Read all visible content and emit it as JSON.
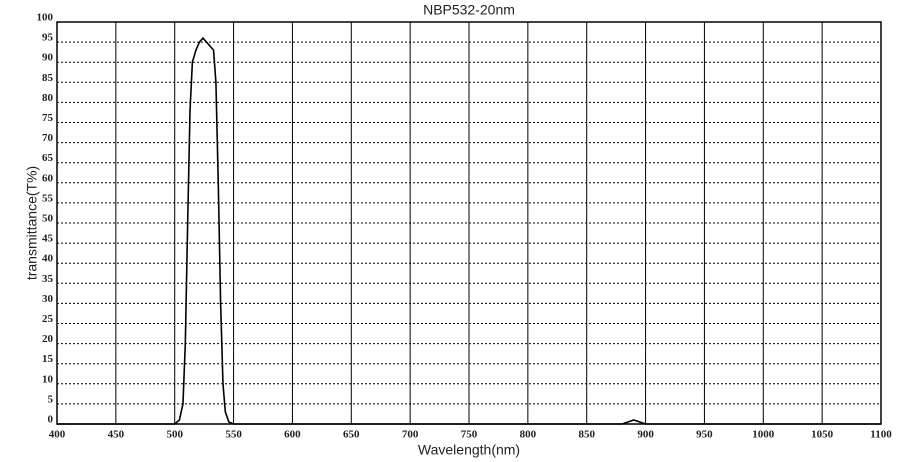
{
  "chart_data": {
    "type": "line",
    "title": "NBP532-20nm",
    "x_label": "Wavelength(nm)",
    "y_label": "transmittance(T%)",
    "series": [
      {
        "color": "#000000",
        "x": [
          400,
          500,
          504,
          507,
          509,
          511,
          513,
          515,
          518,
          521,
          524,
          527,
          530,
          533,
          535,
          537,
          539,
          541,
          543,
          546,
          550,
          600,
          700,
          880,
          890,
          900,
          1100
        ],
        "values": [
          0,
          0,
          1,
          5,
          20,
          50,
          78,
          90,
          93,
          95,
          96,
          95,
          94,
          93,
          85,
          60,
          30,
          10,
          3,
          0.5,
          0,
          0,
          0,
          0,
          1,
          0,
          0
        ]
      }
    ],
    "xlim": [
      400,
      1100
    ],
    "xticks": [
      400,
      450,
      500,
      550,
      600,
      650,
      700,
      750,
      800,
      850,
      900,
      950,
      1000,
      1050,
      1100
    ],
    "ylim": [
      0,
      100
    ],
    "yticks": [
      0,
      5,
      10,
      15,
      20,
      25,
      30,
      35,
      40,
      45,
      50,
      55,
      60,
      65,
      70,
      75,
      80,
      85,
      90,
      95,
      100
    ],
    "grid": true
  }
}
